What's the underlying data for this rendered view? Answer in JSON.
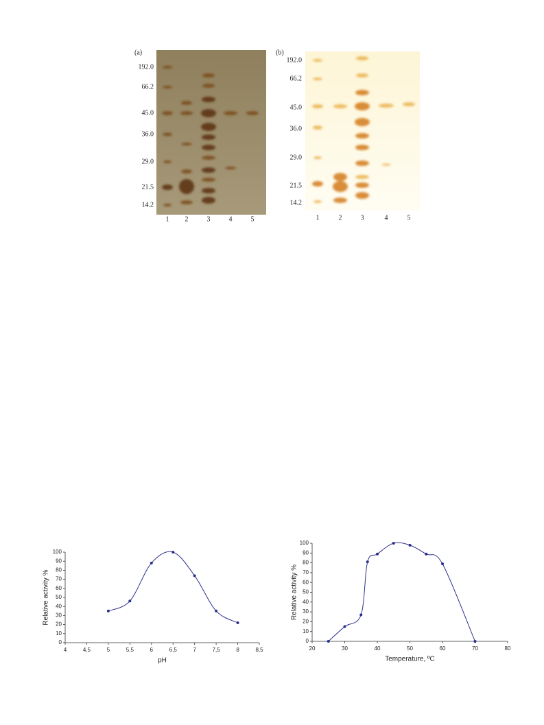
{
  "gels": [
    {
      "label": "(a)",
      "markers": [
        "192.0",
        "66.2",
        "45.0",
        "36.0",
        "29.0",
        "21.5",
        "14.2"
      ],
      "lanes": [
        "1",
        "2",
        "3",
        "4",
        "5"
      ]
    },
    {
      "label": "(b)",
      "markers": [
        "192.0",
        "66.2",
        "45.0",
        "36.0",
        "29.0",
        "21.5",
        "14.2"
      ],
      "lanes": [
        "1",
        "2",
        "3",
        "4",
        "5"
      ]
    }
  ],
  "chart_data": [
    {
      "type": "line",
      "x_label": "pH",
      "y_label": "Relative activity %",
      "color": "#2b2f8c",
      "x": [
        5,
        5.5,
        6,
        6.5,
        7,
        7.5,
        8
      ],
      "values": [
        35,
        46,
        88,
        100,
        74,
        35,
        22
      ],
      "xlim": [
        4,
        8.5
      ],
      "xticks": [
        4,
        {
          "value": 4.5,
          "label": "4,5"
        },
        5,
        {
          "value": 5.5,
          "label": "5,5"
        },
        6,
        {
          "value": 6.5,
          "label": "6,5"
        },
        7,
        {
          "value": 7.5,
          "label": "7,5"
        },
        8,
        {
          "value": 8.5,
          "label": "8,5"
        }
      ],
      "ylim": [
        0,
        100
      ],
      "yticks": [
        0,
        10,
        20,
        30,
        40,
        50,
        60,
        70,
        80,
        90,
        100
      ]
    },
    {
      "type": "line",
      "x_label": "Temperature, ºC",
      "y_label": "Relative activity %",
      "color": "#2b2f8c",
      "x": [
        25,
        30,
        35,
        37,
        40,
        45,
        50,
        55,
        60,
        70
      ],
      "values": [
        0,
        15,
        27,
        81,
        89,
        100,
        98,
        89,
        79,
        0
      ],
      "xlim": [
        20,
        80
      ],
      "xticks": [
        20,
        30,
        40,
        50,
        60,
        70,
        80
      ],
      "ylim": [
        0,
        100
      ],
      "yticks": [
        0,
        10,
        20,
        30,
        40,
        50,
        60,
        70,
        80,
        90,
        100
      ]
    }
  ]
}
